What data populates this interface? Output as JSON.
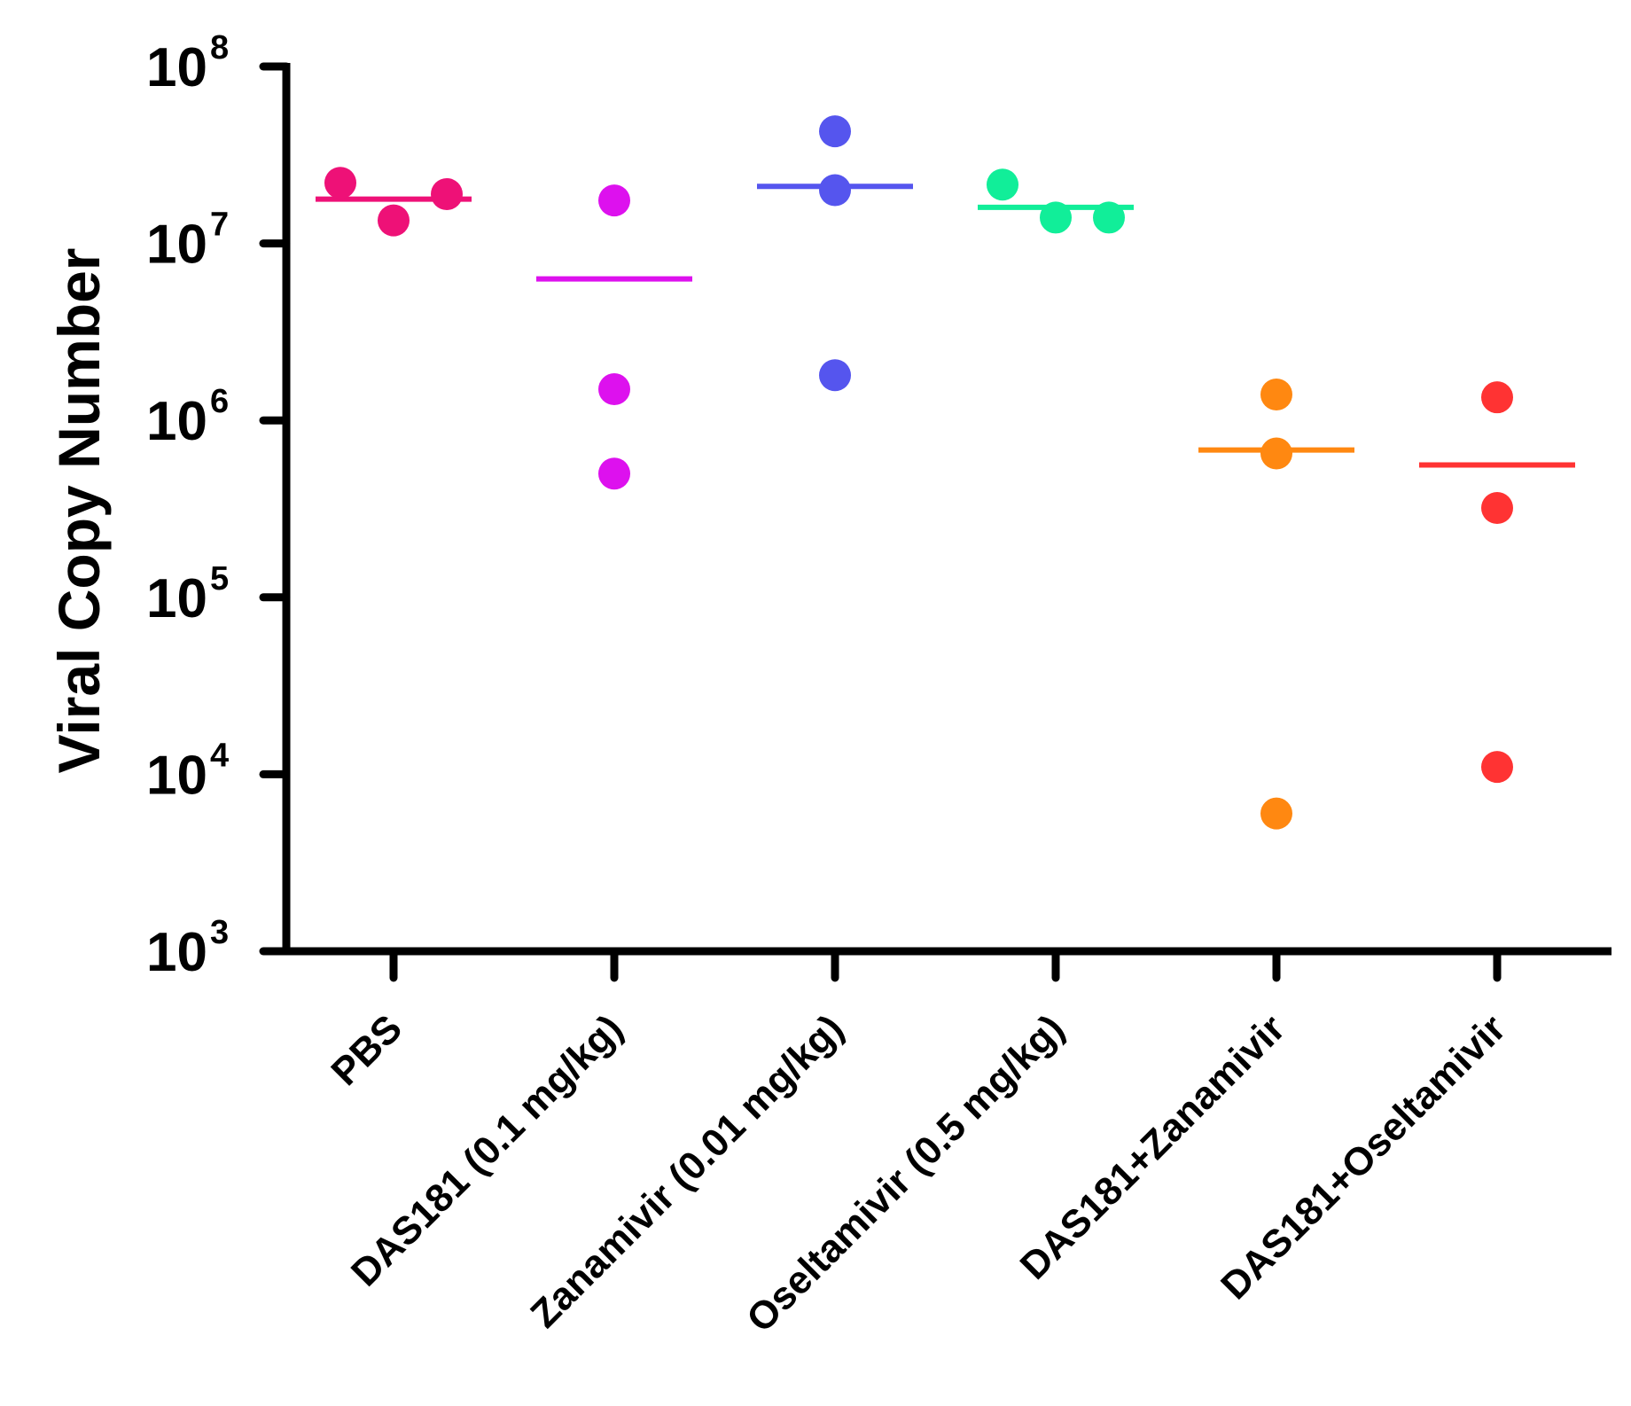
{
  "chart_data": {
    "type": "scatter",
    "title": "",
    "xlabel": "",
    "ylabel": "Viral Copy Number",
    "yscale": "log",
    "ylim": [
      1000,
      100000000
    ],
    "yticks": [
      {
        "base": "10",
        "exp": "3"
      },
      {
        "base": "10",
        "exp": "4"
      },
      {
        "base": "10",
        "exp": "5"
      },
      {
        "base": "10",
        "exp": "6"
      },
      {
        "base": "10",
        "exp": "7"
      },
      {
        "base": "10",
        "exp": "8"
      }
    ],
    "categories": [
      "PBS",
      "DAS181 (0.1 mg/kg)",
      "Zanamivir (0.01 mg/kg)",
      "Oseltamivir (0.5 mg/kg)",
      "DAS181+Zanamivir",
      "DAS181+Oseltamivir"
    ],
    "colors": [
      "#ee1177",
      "#dd11ee",
      "#5555ee",
      "#11ee99",
      "#ff8811",
      "#ff3333"
    ],
    "series": [
      {
        "name": "PBS",
        "points": [
          {
            "x": -0.25,
            "y": 22000000
          },
          {
            "x": 0.0,
            "y": 13500000
          },
          {
            "x": 0.25,
            "y": 19000000
          }
        ],
        "mean": 17800000
      },
      {
        "name": "DAS181 (0.1 mg/kg)",
        "points": [
          {
            "x": 0.0,
            "y": 17500000
          },
          {
            "x": 0.0,
            "y": 1500000
          },
          {
            "x": 0.0,
            "y": 500000
          }
        ],
        "mean": 6300000
      },
      {
        "name": "Zanamivir (0.01 mg/kg)",
        "points": [
          {
            "x": 0.0,
            "y": 43000000
          },
          {
            "x": 0.0,
            "y": 20000000
          },
          {
            "x": 0.0,
            "y": 1800000
          }
        ],
        "mean": 21000000
      },
      {
        "name": "Oseltamivir (0.5 mg/kg)",
        "points": [
          {
            "x": -0.25,
            "y": 21500000
          },
          {
            "x": 0.0,
            "y": 14000000
          },
          {
            "x": 0.25,
            "y": 14000000
          }
        ],
        "mean": 16000000
      },
      {
        "name": "DAS181+Zanamivir",
        "points": [
          {
            "x": 0.0,
            "y": 1400000
          },
          {
            "x": 0.0,
            "y": 650000
          },
          {
            "x": 0.0,
            "y": 6000
          }
        ],
        "mean": 680000
      },
      {
        "name": "DAS181+Oseltamivir",
        "points": [
          {
            "x": 0.0,
            "y": 1350000
          },
          {
            "x": 0.0,
            "y": 320000
          },
          {
            "x": 0.0,
            "y": 11000
          }
        ],
        "mean": 560000
      }
    ]
  }
}
